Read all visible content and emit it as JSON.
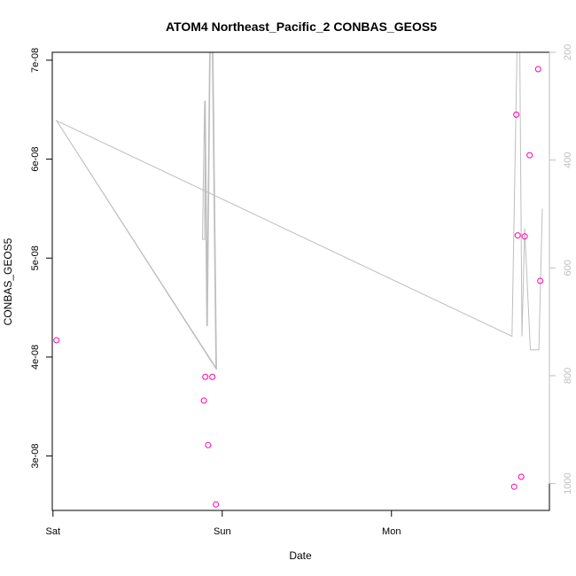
{
  "chart_data": {
    "type": "scatter",
    "title": "ATOM4 Northeast_Pacific_2 CONBAS_GEOS5",
    "xlabel": "Date",
    "ylabel": "CONBAS_GEOS5",
    "xlim_hours": [
      -0.1,
      70.4
    ],
    "ylim": [
      2.45e-08,
      7.08e-08
    ],
    "x_ticks": [
      {
        "hour": 0,
        "label": "Sat"
      },
      {
        "hour": 24,
        "label": "Sun"
      },
      {
        "hour": 48,
        "label": "Mon"
      }
    ],
    "y_ticks": [
      {
        "value": 3e-08,
        "label": "3e-08"
      },
      {
        "value": 4e-08,
        "label": "4e-08"
      },
      {
        "value": 5e-08,
        "label": "5e-08"
      },
      {
        "value": 6e-08,
        "label": "6e-08"
      },
      {
        "value": 7e-08,
        "label": "7e-08"
      }
    ],
    "right_axis": {
      "ylim": [
        1050,
        200
      ],
      "ticks": [
        {
          "value": 200,
          "label": "200"
        },
        {
          "value": 400,
          "label": "400"
        },
        {
          "value": 600,
          "label": "600"
        },
        {
          "value": 800,
          "label": "800"
        },
        {
          "value": 1000,
          "label": "1000"
        }
      ],
      "color": "#bebebe"
    },
    "points": [
      {
        "x": 0.5,
        "y": 4.17e-08
      },
      {
        "x": 21.4,
        "y": 3.56e-08
      },
      {
        "x": 21.6,
        "y": 3.8e-08
      },
      {
        "x": 22.0,
        "y": 3.11e-08
      },
      {
        "x": 22.6,
        "y": 3.8e-08
      },
      {
        "x": 23.1,
        "y": 2.51e-08
      },
      {
        "x": 65.4,
        "y": 2.69e-08
      },
      {
        "x": 65.7,
        "y": 6.45e-08
      },
      {
        "x": 65.9,
        "y": 5.23e-08
      },
      {
        "x": 66.4,
        "y": 2.79e-08
      },
      {
        "x": 66.9,
        "y": 5.22e-08
      },
      {
        "x": 67.6,
        "y": 6.04e-08
      },
      {
        "x": 68.8,
        "y": 6.91e-08
      },
      {
        "x": 69.1,
        "y": 4.77e-08
      }
    ],
    "pressure_line": [
      {
        "x": 0.5,
        "p": 327
      },
      {
        "x": 23.2,
        "p": 787
      },
      {
        "x": 22.7,
        "p": 200
      },
      {
        "x": 22.3,
        "p": 200
      },
      {
        "x": 21.9,
        "p": 708
      },
      {
        "x": 21.6,
        "p": 290
      },
      {
        "x": 21.5,
        "p": 547
      },
      {
        "x": 21.2,
        "p": 547
      },
      {
        "x": 21.5,
        "p": 290
      },
      {
        "x": 21.8,
        "p": 708
      },
      {
        "x": 22.2,
        "p": 200
      },
      {
        "x": 22.6,
        "p": 200
      },
      {
        "x": 23.1,
        "p": 787
      },
      {
        "x": 0.5,
        "p": 327
      },
      {
        "x": 65.1,
        "p": 727
      },
      {
        "x": 65.8,
        "p": 200
      },
      {
        "x": 66.2,
        "p": 200
      },
      {
        "x": 66.5,
        "p": 727
      },
      {
        "x": 66.9,
        "p": 527
      },
      {
        "x": 67.7,
        "p": 752
      },
      {
        "x": 68.9,
        "p": 752
      },
      {
        "x": 69.4,
        "p": 490
      }
    ],
    "point_color": "#ff00a8",
    "line_color": "#bebebe",
    "grid": false,
    "legend": "none"
  }
}
